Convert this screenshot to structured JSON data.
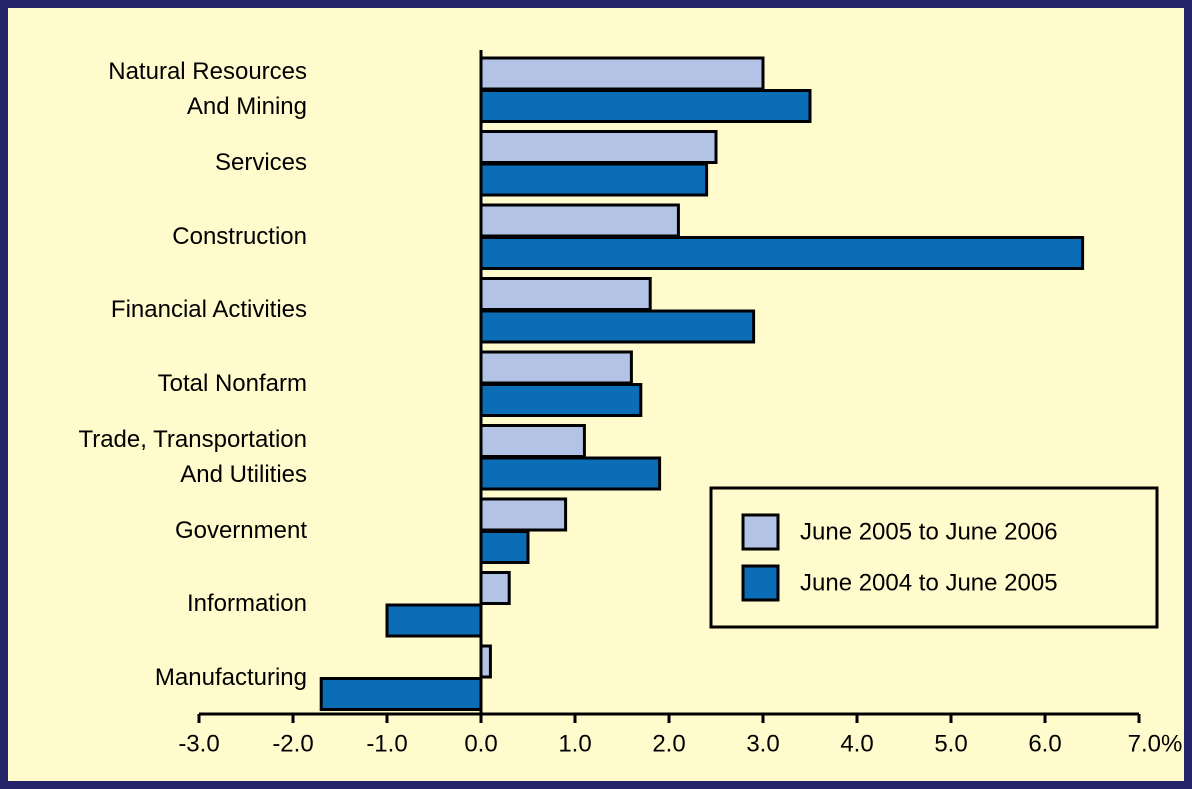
{
  "chart_data": {
    "type": "hbar",
    "categories": [
      "Natural Resources\nAnd Mining",
      "Services",
      "Construction",
      "Financial Activities",
      "Total Nonfarm",
      "Trade, Transportation\nAnd Utilities",
      "Government",
      "Information",
      "Manufacturing"
    ],
    "series": [
      {
        "name": "June 2005 to June 2006",
        "color": "#b2c3e6",
        "values": [
          3.0,
          2.5,
          2.1,
          1.8,
          1.6,
          1.1,
          0.9,
          0.3,
          0.1
        ]
      },
      {
        "name": "June 2004 to June 2005",
        "color": "#0a6db5",
        "values": [
          3.5,
          2.4,
          6.4,
          2.9,
          1.7,
          1.9,
          0.5,
          -1.0,
          -1.7
        ]
      }
    ],
    "xlim": [
      -3.0,
      7.0
    ],
    "xticks": [
      {
        "value": -3.0,
        "label": "-3.0"
      },
      {
        "value": -2.0,
        "label": "-2.0"
      },
      {
        "value": -1.0,
        "label": "-1.0"
      },
      {
        "value": 0.0,
        "label": "0.0"
      },
      {
        "value": 1.0,
        "label": "1.0"
      },
      {
        "value": 2.0,
        "label": "2.0"
      },
      {
        "value": 3.0,
        "label": "3.0"
      },
      {
        "value": 4.0,
        "label": "4.0"
      },
      {
        "value": 5.0,
        "label": "5.0"
      },
      {
        "value": 6.0,
        "label": "6.0"
      },
      {
        "value": 7.0,
        "label": "7.0%"
      }
    ]
  }
}
